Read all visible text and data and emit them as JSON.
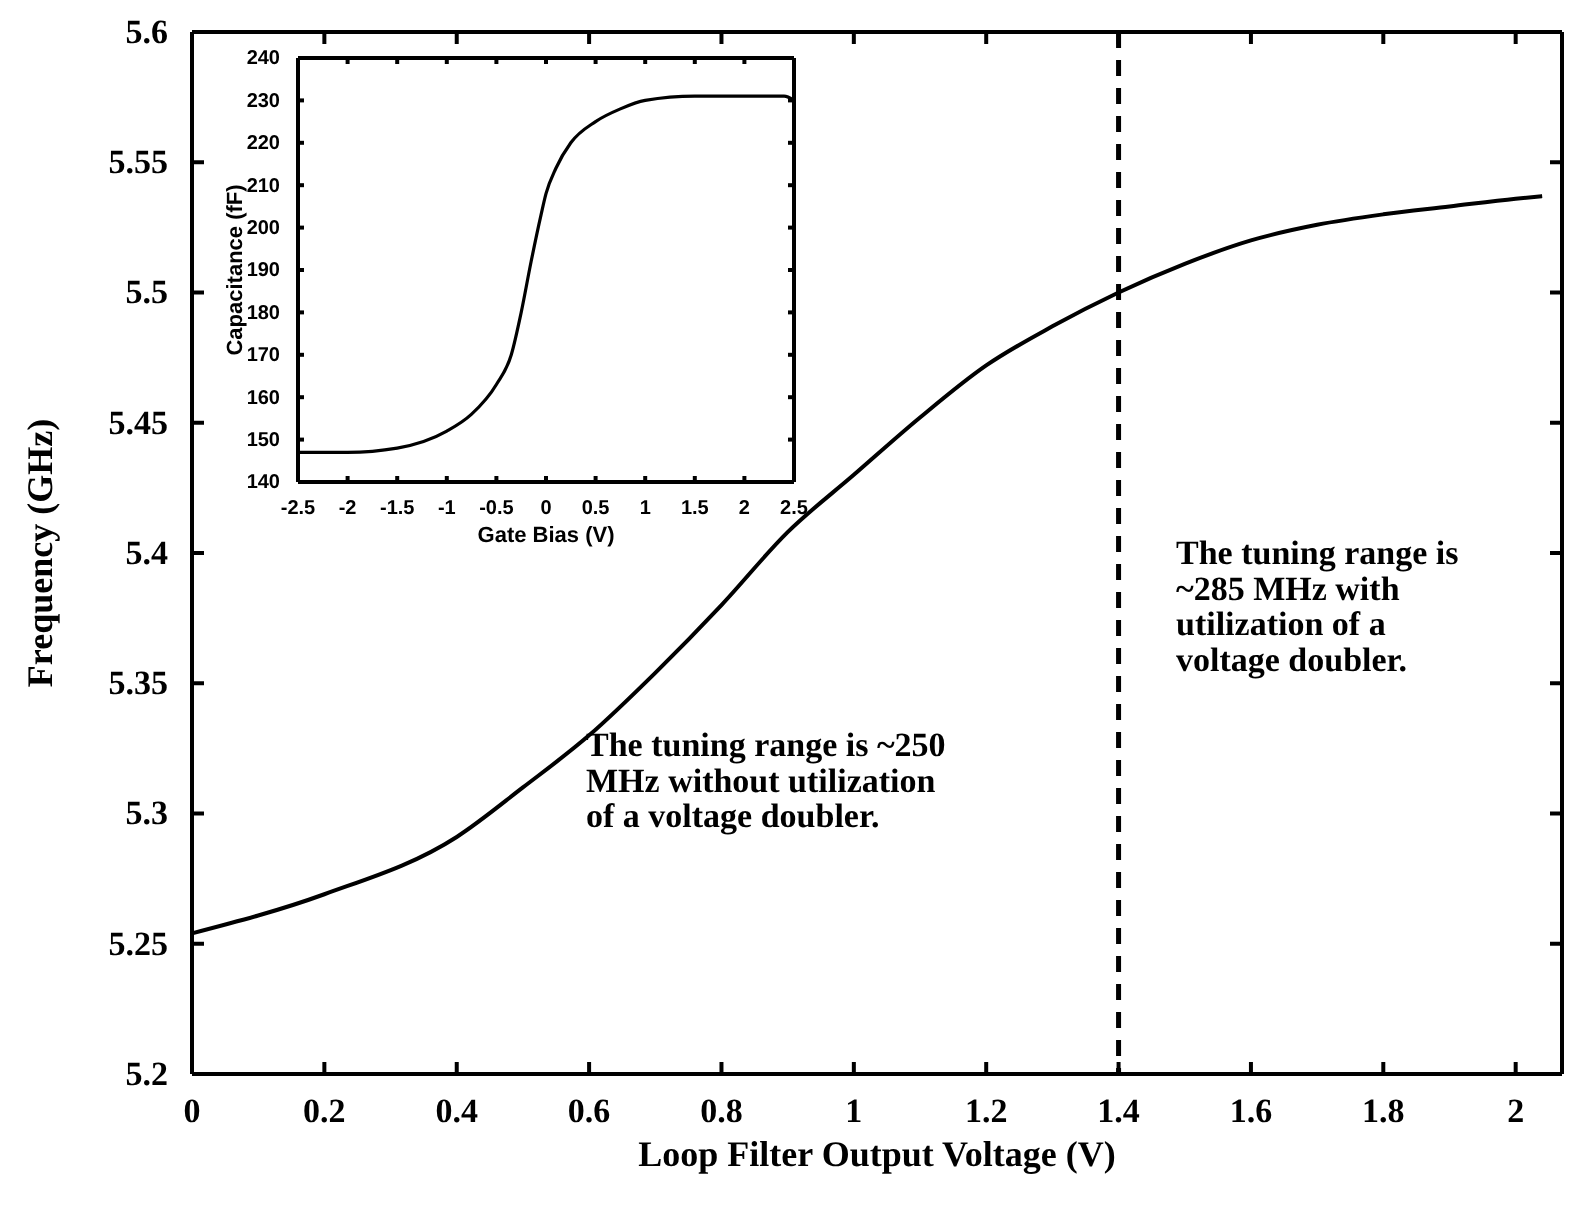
{
  "chart_data": [
    {
      "type": "line",
      "xlabel": "Loop Filter Output Voltage (V)",
      "ylabel": "Frequency (GHz)",
      "x": [
        0,
        0.2,
        0.4,
        0.5,
        0.6,
        0.7,
        0.8,
        0.9,
        1.0,
        1.1,
        1.2,
        1.3,
        1.4,
        1.5,
        1.6,
        1.7,
        1.8,
        1.9,
        2.0,
        2.04
      ],
      "series": [
        {
          "color": "#000000",
          "values": [
            5.254,
            5.269,
            5.291,
            5.31,
            5.33,
            5.354,
            5.38,
            5.408,
            5.43,
            5.452,
            5.472,
            5.487,
            5.5,
            5.511,
            5.52,
            5.526,
            5.53,
            5.533,
            5.536,
            5.537
          ]
        }
      ],
      "xlim": [
        0,
        2.07
      ],
      "xticks": [
        0,
        0.2,
        0.4,
        0.6,
        0.8,
        1,
        1.2,
        1.4,
        1.6,
        1.8,
        2
      ],
      "ylim": [
        5.2,
        5.6
      ],
      "yticks": [
        5.2,
        5.25,
        5.3,
        5.35,
        5.4,
        5.45,
        5.5,
        5.55,
        5.6
      ],
      "ref_lines": [
        {
          "axis": "x",
          "value": 1.4,
          "color": "#000000",
          "line_style": "dashed"
        }
      ],
      "annotations": [
        "The tuning range is ~250 MHz without utilization of a voltage doubler.",
        "The tuning range is ~285 MHz with utilization of a voltage doubler."
      ],
      "grid": false,
      "marker": "none",
      "line_style": "solid"
    },
    {
      "type": "line",
      "xlabel": "Gate Bias (V)",
      "ylabel": "Capacitance (fF)",
      "x": [
        -2.5,
        -2,
        -1.5,
        -1,
        -0.75,
        -0.5,
        -0.35,
        -0.25,
        -0.15,
        -0.05,
        0,
        0.1,
        0.25,
        0.5,
        0.75,
        1,
        1.5,
        2,
        2.4,
        2.5
      ],
      "series": [
        {
          "color": "#000000",
          "values": [
            147,
            147,
            148,
            152,
            156,
            163,
            170,
            180,
            192,
            203,
            208,
            214,
            220,
            225,
            228,
            230,
            231,
            231,
            231,
            230
          ]
        }
      ],
      "xlim": [
        -2.5,
        2.5
      ],
      "xticks": [
        -2.5,
        -2,
        -1.5,
        -1,
        -0.5,
        0,
        0.5,
        1,
        1.5,
        2,
        2.5
      ],
      "ylim": [
        140,
        240
      ],
      "yticks": [
        140,
        150,
        160,
        170,
        180,
        190,
        200,
        210,
        220,
        230,
        240
      ],
      "grid": false,
      "marker": "none",
      "line_style": "solid"
    }
  ]
}
